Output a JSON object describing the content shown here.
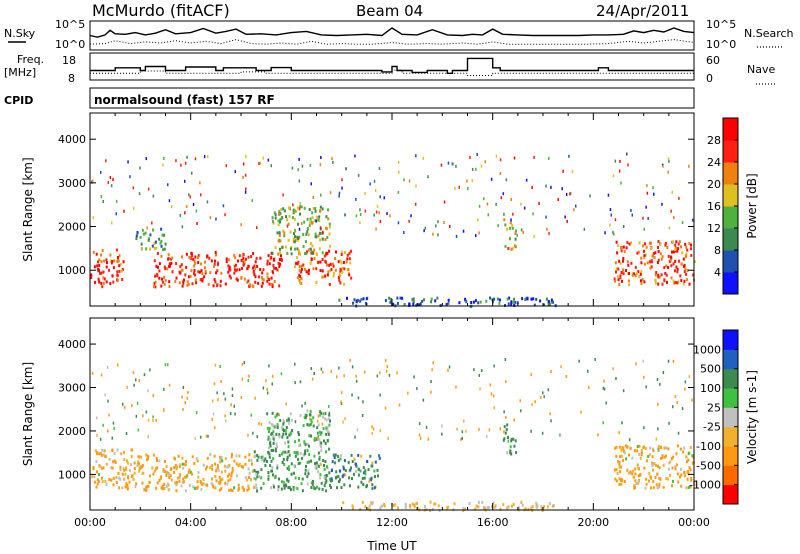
{
  "header": {
    "station": "McMurdo (fitACF)",
    "beam": "Beam 04",
    "date": "24/Apr/2011",
    "cpid_label": "CPID",
    "program": "normalsound (fast) 157 RF"
  },
  "strips": {
    "nsky_label": "N.Sky",
    "nsearch_label": "N.Search",
    "freq_label": "Freq.",
    "freq_unit": "[MHz]",
    "nave_label": "Nave",
    "sky_ticks": [
      "10^5",
      "10^0"
    ],
    "search_ticks": [
      "10^5",
      "10^0"
    ],
    "freq_ticks": [
      "18",
      "8"
    ],
    "nave_ticks": [
      "60",
      "0"
    ],
    "nsky_series": [
      [
        0,
        2.5
      ],
      [
        0.3,
        2.2
      ],
      [
        0.6,
        2.6
      ],
      [
        0.8,
        3.4
      ],
      [
        1.0,
        2.8
      ],
      [
        1.4,
        2.7
      ],
      [
        1.8,
        3.0
      ],
      [
        2.2,
        2.6
      ],
      [
        2.6,
        2.9
      ],
      [
        3.0,
        3.5
      ],
      [
        3.4,
        2.8
      ],
      [
        4.0,
        3.0
      ],
      [
        4.5,
        3.7
      ],
      [
        5.0,
        2.9
      ],
      [
        5.4,
        3.2
      ],
      [
        5.8,
        3.6
      ],
      [
        6.2,
        2.7
      ],
      [
        6.8,
        2.8
      ],
      [
        7.4,
        2.6
      ],
      [
        8.0,
        3.0
      ],
      [
        8.6,
        3.2
      ],
      [
        9.2,
        2.6
      ],
      [
        9.8,
        2.5
      ],
      [
        10.4,
        2.6
      ],
      [
        11.0,
        2.7
      ],
      [
        11.6,
        2.5
      ],
      [
        12.0,
        3.8
      ],
      [
        12.4,
        2.7
      ],
      [
        13.0,
        2.6
      ],
      [
        13.6,
        3.5
      ],
      [
        14.2,
        2.6
      ],
      [
        14.8,
        2.5
      ],
      [
        15.2,
        2.7
      ],
      [
        15.6,
        2.6
      ],
      [
        16.0,
        3.6
      ],
      [
        16.4,
        2.7
      ],
      [
        17.0,
        2.6
      ],
      [
        17.6,
        2.5
      ],
      [
        18.2,
        2.5
      ],
      [
        18.8,
        2.5
      ],
      [
        19.4,
        2.5
      ],
      [
        20.0,
        2.6
      ],
      [
        20.6,
        2.6
      ],
      [
        21.2,
        2.7
      ],
      [
        21.6,
        3.3
      ],
      [
        22.0,
        3.0
      ],
      [
        22.4,
        3.4
      ],
      [
        22.8,
        3.1
      ],
      [
        23.2,
        3.8
      ],
      [
        23.6,
        3.2
      ],
      [
        24,
        3.0
      ]
    ],
    "nsearch_series": [
      [
        0,
        1.0
      ],
      [
        0.6,
        1.1
      ],
      [
        1.0,
        1.6
      ],
      [
        1.6,
        1.1
      ],
      [
        2.2,
        1.4
      ],
      [
        2.8,
        1.2
      ],
      [
        3.4,
        1.6
      ],
      [
        4.0,
        1.2
      ],
      [
        4.6,
        1.5
      ],
      [
        5.2,
        1.1
      ],
      [
        5.8,
        1.8
      ],
      [
        6.4,
        1.1
      ],
      [
        7.0,
        1.0
      ],
      [
        7.6,
        1.2
      ],
      [
        8.2,
        1.0
      ],
      [
        8.8,
        1.5
      ],
      [
        9.4,
        1.0
      ],
      [
        10.0,
        1.1
      ],
      [
        10.6,
        1.0
      ],
      [
        11.2,
        1.0
      ],
      [
        12.0,
        1.3
      ],
      [
        12.6,
        1.0
      ],
      [
        13.4,
        1.1
      ],
      [
        14.0,
        1.0
      ],
      [
        14.8,
        1.2
      ],
      [
        15.4,
        1.0
      ],
      [
        16.0,
        1.4
      ],
      [
        16.6,
        1.0
      ],
      [
        17.4,
        1.0
      ],
      [
        18.2,
        1.0
      ],
      [
        19.0,
        1.0
      ],
      [
        19.8,
        1.0
      ],
      [
        20.6,
        1.1
      ],
      [
        21.4,
        1.5
      ],
      [
        22.0,
        1.2
      ],
      [
        22.6,
        1.5
      ],
      [
        23.2,
        1.8
      ],
      [
        24,
        1.3
      ]
    ],
    "freq_series": [
      [
        0,
        11.5
      ],
      [
        1.0,
        11.5
      ],
      [
        1.0,
        12.5
      ],
      [
        2.0,
        12.5
      ],
      [
        2.0,
        11.5
      ],
      [
        2.2,
        11.5
      ],
      [
        2.2,
        13.0
      ],
      [
        3.0,
        13.0
      ],
      [
        3.0,
        11.5
      ],
      [
        3.8,
        11.5
      ],
      [
        3.8,
        12.8
      ],
      [
        5.0,
        12.8
      ],
      [
        5.0,
        11.5
      ],
      [
        5.3,
        11.5
      ],
      [
        5.3,
        12.5
      ],
      [
        6.6,
        12.5
      ],
      [
        6.6,
        11.5
      ],
      [
        7.2,
        11.5
      ],
      [
        7.2,
        12.6
      ],
      [
        8.0,
        12.6
      ],
      [
        8.0,
        11.5
      ],
      [
        11.6,
        11.5
      ],
      [
        11.6,
        11.0
      ],
      [
        12.0,
        11.0
      ],
      [
        12.0,
        13.0
      ],
      [
        12.2,
        13.0
      ],
      [
        12.2,
        11.5
      ],
      [
        12.8,
        11.5
      ],
      [
        12.8,
        10.8
      ],
      [
        13.4,
        10.8
      ],
      [
        13.4,
        11.5
      ],
      [
        14.2,
        11.5
      ],
      [
        14.2,
        10.5
      ],
      [
        14.4,
        10.5
      ],
      [
        14.4,
        11.5
      ],
      [
        15.0,
        11.5
      ],
      [
        15.0,
        16.0
      ],
      [
        16.0,
        16.0
      ],
      [
        16.0,
        12.5
      ],
      [
        16.3,
        12.5
      ],
      [
        16.3,
        11.5
      ],
      [
        20.2,
        11.5
      ],
      [
        20.2,
        12.5
      ],
      [
        20.6,
        12.5
      ],
      [
        20.6,
        11.5
      ],
      [
        24,
        11.5
      ]
    ],
    "nave_series": [
      [
        0,
        15
      ],
      [
        2.0,
        15
      ],
      [
        2.0,
        20
      ],
      [
        3.0,
        20
      ],
      [
        3.0,
        15
      ],
      [
        6.0,
        15
      ],
      [
        6.0,
        18
      ],
      [
        7.0,
        18
      ],
      [
        7.0,
        15
      ],
      [
        12.0,
        15
      ],
      [
        12.0,
        22
      ],
      [
        12.4,
        22
      ],
      [
        12.4,
        15
      ],
      [
        15.0,
        15
      ],
      [
        15.0,
        10
      ],
      [
        16.0,
        10
      ],
      [
        16.0,
        15
      ],
      [
        24,
        15
      ]
    ]
  },
  "chart_data": [
    {
      "type": "heatmap",
      "title": "Power",
      "xlabel": "Time UT",
      "ylabel": "Slant Range [km]",
      "xlim": [
        0,
        24
      ],
      "ylim": [
        180,
        4600
      ],
      "x_tick_labels": [
        "00:00",
        "04:00",
        "08:00",
        "12:00",
        "16:00",
        "20:00",
        "00:00"
      ],
      "y_tick_labels": [
        "1000",
        "2000",
        "3000",
        "4000"
      ],
      "y_ticks": [
        1000,
        2000,
        3000,
        4000
      ],
      "colorbar_label": "Power [dB]",
      "colorbar_ticks": [
        "4",
        "8",
        "12",
        "16",
        "20",
        "24",
        "28"
      ],
      "colorbar_values": [
        4,
        8,
        12,
        16,
        20,
        24,
        28
      ],
      "colorbar_range": [
        0,
        32
      ],
      "colors": [
        "#1010ff",
        "#2050b0",
        "#3c8a50",
        "#50b040",
        "#e0c020",
        "#f08010",
        "#ff2010",
        "#ff0000"
      ],
      "regions": [
        {
          "t0": 0.0,
          "t1": 1.3,
          "r0": 650,
          "r1": 1500,
          "value": 26
        },
        {
          "t0": 2.5,
          "t1": 7.6,
          "r0": 650,
          "r1": 1450,
          "value": 27
        },
        {
          "t0": 8.1,
          "t1": 10.4,
          "r0": 700,
          "r1": 1500,
          "value": 25
        },
        {
          "t0": 1.8,
          "t1": 3.0,
          "r0": 1500,
          "r1": 2000,
          "value": 12
        },
        {
          "t0": 7.2,
          "t1": 9.5,
          "r0": 1400,
          "r1": 2500,
          "value": 15
        },
        {
          "t0": 16.4,
          "t1": 16.9,
          "r0": 1500,
          "r1": 2200,
          "value": 18
        },
        {
          "t0": 20.8,
          "t1": 24.0,
          "r0": 700,
          "r1": 1700,
          "value": 25
        },
        {
          "t0": 9.8,
          "t1": 18.5,
          "r0": 200,
          "r1": 400,
          "value": 6
        }
      ]
    },
    {
      "type": "heatmap",
      "title": "Velocity",
      "xlabel": "Time UT",
      "ylabel": "Slant Range [km]",
      "xlim": [
        0,
        24
      ],
      "ylim": [
        180,
        4600
      ],
      "x_tick_labels": [
        "00:00",
        "04:00",
        "08:00",
        "12:00",
        "16:00",
        "20:00",
        "00:00"
      ],
      "y_tick_labels": [
        "1000",
        "2000",
        "3000",
        "4000"
      ],
      "y_ticks": [
        1000,
        2000,
        3000,
        4000
      ],
      "colorbar_label": "Velocity [m s-1]",
      "colorbar_ticks": [
        "1000",
        "500",
        "100",
        "25",
        "-25",
        "-100",
        "-500",
        "-1000"
      ],
      "colorbar_range": [
        -1200,
        1200
      ],
      "colors": [
        "#ff0000",
        "#ff6a00",
        "#ff9a10",
        "#f0b030",
        "#c0c0c0",
        "#40c040",
        "#3c8a50",
        "#2060c0",
        "#1010ff"
      ],
      "regions": [
        {
          "t0": 0.0,
          "t1": 2.0,
          "r0": 700,
          "r1": 1600,
          "value": -120
        },
        {
          "t0": 2.0,
          "t1": 6.5,
          "r0": 650,
          "r1": 1500,
          "value": -150
        },
        {
          "t0": 6.5,
          "t1": 9.5,
          "r0": 650,
          "r1": 1600,
          "value": 120
        },
        {
          "t0": 9.5,
          "t1": 11.5,
          "r0": 700,
          "r1": 1500,
          "value": 300
        },
        {
          "t0": 7.0,
          "t1": 9.5,
          "r0": 1500,
          "r1": 2500,
          "value": 80
        },
        {
          "t0": 16.4,
          "t1": 16.9,
          "r0": 1500,
          "r1": 2200,
          "value": 200
        },
        {
          "t0": 20.8,
          "t1": 24.0,
          "r0": 700,
          "r1": 1700,
          "value": -200
        },
        {
          "t0": 9.8,
          "t1": 18.5,
          "r0": 200,
          "r1": 400,
          "value": -40
        }
      ]
    }
  ]
}
